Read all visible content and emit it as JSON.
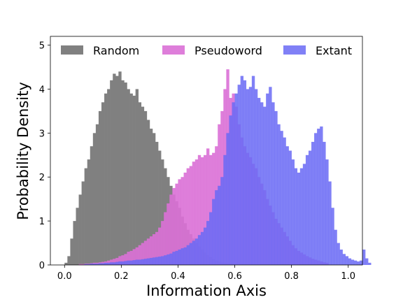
{
  "chart_data": {
    "type": "histogram",
    "title": "",
    "xlabel": "Information Axis",
    "ylabel": "Probability Density",
    "xlim": [
      -0.05,
      1.05
    ],
    "ylim": [
      0,
      5.2
    ],
    "xticks": [
      "0.0",
      "0.2",
      "0.4",
      "0.6",
      "0.8",
      "1.0"
    ],
    "yticks": [
      "0",
      "1",
      "2",
      "3",
      "4",
      "5"
    ],
    "legend_position": "top",
    "series": [
      {
        "name": "Random",
        "color": "#808080",
        "opacity": 1.0,
        "bin_start": 0.0,
        "bin_width": 0.01,
        "values": [
          0.05,
          0.2,
          0.6,
          1.0,
          1.3,
          1.6,
          1.9,
          2.2,
          2.4,
          2.7,
          3.0,
          3.2,
          3.5,
          3.7,
          3.9,
          4.0,
          4.2,
          4.35,
          4.3,
          4.4,
          4.2,
          4.15,
          4.0,
          3.9,
          3.85,
          4.0,
          3.7,
          3.6,
          3.5,
          3.3,
          3.1,
          3.0,
          2.8,
          2.6,
          2.4,
          2.2,
          2.0,
          1.8,
          1.6,
          1.45,
          1.3,
          1.1,
          0.95,
          0.8,
          0.7,
          0.6,
          0.5,
          0.42,
          0.35,
          0.28,
          0.22,
          0.18,
          0.14,
          0.1,
          0.08,
          0.06,
          0.05,
          0.04,
          0.03,
          0.02
        ]
      },
      {
        "name": "Pseudoword",
        "color": "#da70d6",
        "opacity": 0.9,
        "bin_start": 0.05,
        "bin_width": 0.01,
        "values": [
          0.02,
          0.02,
          0.03,
          0.03,
          0.04,
          0.05,
          0.05,
          0.06,
          0.07,
          0.08,
          0.1,
          0.12,
          0.14,
          0.16,
          0.2,
          0.22,
          0.25,
          0.3,
          0.32,
          0.36,
          0.4,
          0.45,
          0.5,
          0.55,
          0.6,
          0.65,
          0.7,
          0.75,
          0.85,
          1.0,
          1.2,
          1.4,
          1.6,
          1.75,
          1.85,
          1.95,
          2.0,
          2.1,
          2.2,
          2.25,
          2.35,
          2.4,
          2.5,
          2.45,
          2.5,
          2.65,
          2.5,
          2.55,
          2.7,
          3.2,
          3.5,
          4.0,
          4.45,
          3.8,
          3.9,
          3.6,
          3.2,
          2.9,
          2.7,
          2.55,
          2.45,
          2.3,
          2.2,
          2.0,
          1.85,
          1.7,
          1.5,
          1.35,
          1.2,
          1.05,
          0.95,
          0.85,
          0.75,
          0.65,
          0.55,
          0.45,
          0.38,
          0.32,
          0.28,
          0.24,
          0.2,
          0.17,
          0.14,
          0.12,
          0.1,
          0.08,
          0.06,
          0.05
        ]
      },
      {
        "name": "Extant",
        "color": "#6a6af4",
        "opacity": 0.85,
        "bin_start": 0.07,
        "bin_width": 0.01,
        "values": [
          0.02,
          0.02,
          0.03,
          0.03,
          0.03,
          0.04,
          0.04,
          0.05,
          0.05,
          0.06,
          0.06,
          0.07,
          0.08,
          0.08,
          0.09,
          0.1,
          0.1,
          0.11,
          0.12,
          0.12,
          0.13,
          0.14,
          0.15,
          0.16,
          0.17,
          0.18,
          0.19,
          0.2,
          0.22,
          0.24,
          0.26,
          0.3,
          0.32,
          0.35,
          0.38,
          0.4,
          0.45,
          0.5,
          0.55,
          0.6,
          0.68,
          0.75,
          0.85,
          1.0,
          1.2,
          1.5,
          1.7,
          1.8,
          2.0,
          2.5,
          3.0,
          3.4,
          3.7,
          3.9,
          4.1,
          4.3,
          4.2,
          4.0,
          4.05,
          4.3,
          4.0,
          3.8,
          3.7,
          3.6,
          3.9,
          4.05,
          3.7,
          3.5,
          3.2,
          3.05,
          2.9,
          2.7,
          2.6,
          2.4,
          2.2,
          2.1,
          2.2,
          2.3,
          2.5,
          2.6,
          2.8,
          3.0,
          3.1,
          3.15,
          2.8,
          2.4,
          1.9,
          1.3,
          0.8,
          0.5,
          0.35,
          0.25,
          0.2,
          0.15,
          0.12,
          0.1,
          0.08,
          0.1,
          0.35,
          0.15,
          0.05
        ]
      }
    ]
  }
}
